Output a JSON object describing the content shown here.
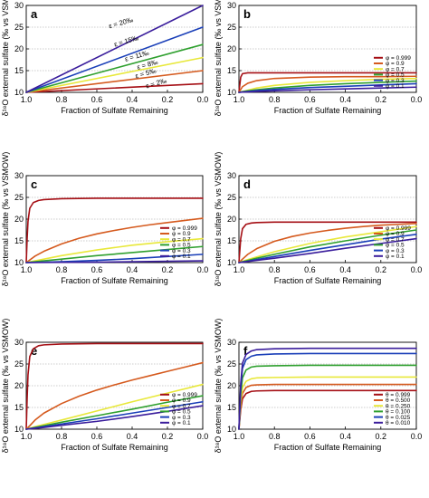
{
  "colors": [
    "#a50f15",
    "#d55a1e",
    "#e8e83a",
    "#2fa02f",
    "#1a3fb8",
    "#3a1d9c"
  ],
  "chart_data": [
    {
      "type": "line",
      "panel": "a",
      "xlabel": "Fraction of Sulfate Remaining",
      "ylabel": "δ¹⁸O external sulfate (‰ vs VSMOW)",
      "xlim": [
        1.0,
        0.0
      ],
      "ylim": [
        10,
        30
      ],
      "xticks": [
        "1.0",
        "0.8",
        "0.6",
        "0.4",
        "0.2",
        "0.0"
      ],
      "yticks": [
        "10",
        "15",
        "20",
        "25",
        "30"
      ],
      "series": [
        {
          "name": "ε = 2‰",
          "x": [
            1.0,
            0.0
          ],
          "y": [
            10,
            12
          ]
        },
        {
          "name": "ε = 5‰",
          "x": [
            1.0,
            0.0
          ],
          "y": [
            10,
            15
          ]
        },
        {
          "name": "ε = 8‰",
          "x": [
            1.0,
            0.0
          ],
          "y": [
            10,
            18
          ]
        },
        {
          "name": "ε = 11‰",
          "x": [
            1.0,
            0.0
          ],
          "y": [
            10,
            21
          ]
        },
        {
          "name": "ε = 15‰",
          "x": [
            1.0,
            0.0
          ],
          "y": [
            10,
            25
          ]
        },
        {
          "name": "ε = 20‰",
          "x": [
            1.0,
            0.0
          ],
          "y": [
            10,
            30
          ]
        }
      ],
      "annotations": [
        {
          "text": "ε = 20‰",
          "x": 0.46,
          "y": 25.5
        },
        {
          "text": "ε = 15‰",
          "x": 0.43,
          "y": 21.3
        },
        {
          "text": "ε = 11‰",
          "x": 0.37,
          "y": 17.9
        },
        {
          "text": "ε = 8‰",
          "x": 0.31,
          "y": 15.9
        },
        {
          "text": "ε = 5‰",
          "x": 0.32,
          "y": 13.9
        },
        {
          "text": "ε = 2‰",
          "x": 0.26,
          "y": 11.6
        }
      ]
    },
    {
      "type": "line",
      "panel": "b",
      "xlabel": "Fraction of Sulfate Remaining",
      "ylabel": "δ¹⁸O external sulfate (‰ vs VSMOW)",
      "xlim": [
        1.0,
        0.0
      ],
      "ylim": [
        0,
        30
      ],
      "xticks": [
        "1.0",
        "0.8",
        "0.6",
        "0.4",
        "0.2",
        "0.0"
      ],
      "yticks": [
        "10",
        "15",
        "20",
        "25",
        "30"
      ],
      "legend_title": "φ",
      "legend_position": "bottom-right",
      "series": [
        {
          "name": "φ = 0.999",
          "x": [
            1.0,
            0.99,
            0.98,
            0.95,
            0.9,
            0.6,
            0.3,
            0.0
          ],
          "y": [
            10,
            13.5,
            14.3,
            14.5,
            14.5,
            14.5,
            14.5,
            14.5
          ]
        },
        {
          "name": "φ = 0.9",
          "x": [
            1.0,
            0.98,
            0.95,
            0.9,
            0.8,
            0.6,
            0.4,
            0.2,
            0.0
          ],
          "y": [
            10,
            11.3,
            12.1,
            12.7,
            13.2,
            13.5,
            13.6,
            13.6,
            13.7
          ]
        },
        {
          "name": "φ = 0.7",
          "x": [
            1.0,
            0.98,
            0.95,
            0.9,
            0.8,
            0.6,
            0.4,
            0.2,
            0.0
          ],
          "y": [
            10,
            10.2,
            10.5,
            11.0,
            11.6,
            12.3,
            12.7,
            13.0,
            13.2
          ]
        },
        {
          "name": "φ = 0.5",
          "x": [
            1.0,
            0.98,
            0.95,
            0.9,
            0.8,
            0.6,
            0.4,
            0.2,
            0.0
          ],
          "y": [
            10,
            10.15,
            10.35,
            10.6,
            11.0,
            11.6,
            12.0,
            12.3,
            12.6
          ]
        },
        {
          "name": "φ = 0.3",
          "x": [
            1.0,
            0.98,
            0.95,
            0.9,
            0.8,
            0.6,
            0.4,
            0.2,
            0.0
          ],
          "y": [
            10,
            10.1,
            10.2,
            10.4,
            10.7,
            11.1,
            11.4,
            11.7,
            12.0
          ]
        },
        {
          "name": "φ = 0.1",
          "x": [
            1.0,
            0.98,
            0.95,
            0.9,
            0.8,
            0.6,
            0.4,
            0.2,
            0.0
          ],
          "y": [
            10,
            10.05,
            10.1,
            10.2,
            10.35,
            10.6,
            10.8,
            11.0,
            11.2
          ]
        }
      ]
    },
    {
      "type": "line",
      "panel": "c",
      "xlabel": "Fraction of Sulfate Remaining",
      "ylabel": "δ¹⁸O external sulfate (‰ vs VSMOW)",
      "xlim": [
        1.0,
        0.0
      ],
      "ylim": [
        10,
        30
      ],
      "xticks": [
        "1.0",
        "0.8",
        "0.6",
        "0.4",
        "0.2",
        "0.0"
      ],
      "yticks": [
        "10",
        "15",
        "20",
        "25",
        "30"
      ],
      "legend_title": "φ",
      "legend_position": "bottom-right",
      "series": [
        {
          "name": "φ = 0.999",
          "x": [
            1.0,
            0.995,
            0.99,
            0.98,
            0.96,
            0.93,
            0.9,
            0.8,
            0.6,
            0.3,
            0.0
          ],
          "y": [
            10,
            15.5,
            19.5,
            22.5,
            23.8,
            24.3,
            24.5,
            24.7,
            24.8,
            24.8,
            24.8
          ]
        },
        {
          "name": "φ = 0.9",
          "x": [
            1.0,
            0.98,
            0.95,
            0.9,
            0.8,
            0.7,
            0.6,
            0.5,
            0.4,
            0.3,
            0.2,
            0.1,
            0.0
          ],
          "y": [
            10,
            10.6,
            11.5,
            12.6,
            14.3,
            15.6,
            16.6,
            17.4,
            18.1,
            18.7,
            19.2,
            19.7,
            20.2
          ]
        },
        {
          "name": "φ = 0.7",
          "x": [
            1.0,
            0.95,
            0.9,
            0.8,
            0.6,
            0.4,
            0.2,
            0.0
          ],
          "y": [
            10,
            10.4,
            10.8,
            11.6,
            12.9,
            14.0,
            14.8,
            15.5
          ]
        },
        {
          "name": "φ = 0.5",
          "x": [
            1.0,
            0.95,
            0.9,
            0.8,
            0.6,
            0.4,
            0.2,
            0.0
          ],
          "y": [
            10,
            10.2,
            10.4,
            10.8,
            11.6,
            12.3,
            13.0,
            13.7
          ]
        },
        {
          "name": "φ = 0.3",
          "x": [
            1.0,
            0.9,
            0.8,
            0.6,
            0.4,
            0.2,
            0.0
          ],
          "y": [
            10,
            10.1,
            10.2,
            10.5,
            10.9,
            11.4,
            11.9
          ]
        },
        {
          "name": "φ = 0.1",
          "x": [
            1.0,
            0.8,
            0.6,
            0.4,
            0.2,
            0.0
          ],
          "y": [
            10,
            10.05,
            10.1,
            10.2,
            10.3,
            10.4
          ]
        }
      ]
    },
    {
      "type": "line",
      "panel": "d",
      "xlabel": "Fraction of Sulfate Remaining",
      "ylabel": "δ¹⁸O external sulfate (‰ vs VSMOW)",
      "xlim": [
        1.0,
        0.0
      ],
      "ylim": [
        10,
        30
      ],
      "xticks": [
        "1.0",
        "0.8",
        "0.6",
        "0.4",
        "0.2",
        "0.0"
      ],
      "yticks": [
        "10",
        "15",
        "20",
        "25",
        "30"
      ],
      "legend_title": "φ",
      "legend_position": "bottom-right",
      "series": [
        {
          "name": "φ = 0.999",
          "x": [
            1.0,
            0.99,
            0.98,
            0.96,
            0.93,
            0.9,
            0.8,
            0.6,
            0.3,
            0.0
          ],
          "y": [
            10,
            15.5,
            17.8,
            18.8,
            19.1,
            19.2,
            19.3,
            19.3,
            19.3,
            19.3
          ]
        },
        {
          "name": "φ = 0.9",
          "x": [
            1.0,
            0.98,
            0.95,
            0.9,
            0.8,
            0.7,
            0.6,
            0.5,
            0.4,
            0.3,
            0.2,
            0.1,
            0.0
          ],
          "y": [
            10,
            10.8,
            11.9,
            13.2,
            14.9,
            16.0,
            16.8,
            17.4,
            17.9,
            18.3,
            18.6,
            18.8,
            19.0
          ]
        },
        {
          "name": "φ = 0.7",
          "x": [
            1.0,
            0.95,
            0.9,
            0.8,
            0.6,
            0.4,
            0.2,
            0.0
          ],
          "y": [
            10,
            10.7,
            11.3,
            12.5,
            14.4,
            15.9,
            17.1,
            18.3
          ]
        },
        {
          "name": "φ = 0.5",
          "x": [
            1.0,
            0.95,
            0.9,
            0.8,
            0.6,
            0.4,
            0.2,
            0.0
          ],
          "y": [
            10,
            10.5,
            11.0,
            11.9,
            13.6,
            15.0,
            16.3,
            17.5
          ]
        },
        {
          "name": "φ = 0.3",
          "x": [
            1.0,
            0.95,
            0.9,
            0.8,
            0.6,
            0.4,
            0.2,
            0.0
          ],
          "y": [
            10,
            10.3,
            10.7,
            11.4,
            12.8,
            14.1,
            15.4,
            16.5
          ]
        },
        {
          "name": "φ = 0.1",
          "x": [
            1.0,
            0.95,
            0.9,
            0.8,
            0.6,
            0.4,
            0.2,
            0.0
          ],
          "y": [
            10,
            10.25,
            10.5,
            11.0,
            12.1,
            13.3,
            14.4,
            15.5
          ]
        }
      ]
    },
    {
      "type": "line",
      "panel": "e",
      "xlabel": "Fraction of Sulfate Remaining",
      "ylabel": "δ¹⁸O external sulfate (‰ vs VSMOW)",
      "xlim": [
        1.0,
        0.0
      ],
      "ylim": [
        10,
        30
      ],
      "xticks": [
        "1.0",
        "0.8",
        "0.6",
        "0.4",
        "0.2",
        "0.0"
      ],
      "yticks": [
        "10",
        "15",
        "20",
        "25",
        "30"
      ],
      "legend_title": "φ",
      "legend_position": "bottom-right",
      "series": [
        {
          "name": "φ = 0.999",
          "x": [
            1.0,
            0.995,
            0.99,
            0.98,
            0.96,
            0.93,
            0.9,
            0.8,
            0.6,
            0.3,
            0.0
          ],
          "y": [
            10,
            17.0,
            22.5,
            26.7,
            28.5,
            29.2,
            29.4,
            29.6,
            29.7,
            29.7,
            29.7
          ]
        },
        {
          "name": "φ = 0.9",
          "x": [
            1.0,
            0.98,
            0.95,
            0.9,
            0.8,
            0.7,
            0.6,
            0.5,
            0.4,
            0.3,
            0.2,
            0.1,
            0.0
          ],
          "y": [
            10,
            10.8,
            12.1,
            13.7,
            15.9,
            17.6,
            19.0,
            20.2,
            21.3,
            22.3,
            23.3,
            24.3,
            25.3
          ]
        },
        {
          "name": "φ = 0.7",
          "x": [
            1.0,
            0.95,
            0.9,
            0.8,
            0.6,
            0.4,
            0.2,
            0.0
          ],
          "y": [
            10,
            10.6,
            11.1,
            12.1,
            14.2,
            16.3,
            18.3,
            20.3
          ]
        },
        {
          "name": "φ = 0.5",
          "x": [
            1.0,
            0.95,
            0.9,
            0.8,
            0.6,
            0.4,
            0.2,
            0.0
          ],
          "y": [
            10,
            10.4,
            10.8,
            11.6,
            13.1,
            14.6,
            16.2,
            17.7
          ]
        },
        {
          "name": "φ = 0.3",
          "x": [
            1.0,
            0.95,
            0.9,
            0.8,
            0.6,
            0.4,
            0.2,
            0.0
          ],
          "y": [
            10,
            10.3,
            10.6,
            11.2,
            12.4,
            13.7,
            15.0,
            16.3
          ]
        },
        {
          "name": "φ = 0.1",
          "x": [
            1.0,
            0.95,
            0.9,
            0.8,
            0.6,
            0.4,
            0.2,
            0.0
          ],
          "y": [
            10,
            10.2,
            10.4,
            10.9,
            11.8,
            12.9,
            14.1,
            15.4
          ]
        }
      ]
    },
    {
      "type": "line",
      "panel": "f",
      "xlabel": "Fraction of Sulfate Remaining",
      "ylabel": "δ¹⁸O external sulfate (‰ vs VSMOW)",
      "xlim": [
        1.0,
        0.0
      ],
      "ylim": [
        10,
        30
      ],
      "xticks": [
        "1.0",
        "0.8",
        "0.6",
        "0.4",
        "0.2",
        "0.0"
      ],
      "yticks": [
        "10",
        "15",
        "20",
        "25",
        "30"
      ],
      "legend_title": "θ",
      "legend_position": "bottom-right",
      "series": [
        {
          "name": "θ = 0.999",
          "x": [
            1.0,
            0.99,
            0.98,
            0.96,
            0.93,
            0.9,
            0.8,
            0.6,
            0.3,
            0.0
          ],
          "y": [
            10,
            14.5,
            17.0,
            18.2,
            18.7,
            18.8,
            18.9,
            18.9,
            18.9,
            18.9
          ]
        },
        {
          "name": "θ = 0.500",
          "x": [
            1.0,
            0.99,
            0.98,
            0.96,
            0.93,
            0.9,
            0.8,
            0.6,
            0.3,
            0.0
          ],
          "y": [
            10,
            15.5,
            18.2,
            19.6,
            20.1,
            20.2,
            20.3,
            20.3,
            20.3,
            20.3
          ]
        },
        {
          "name": "θ = 0.250",
          "x": [
            1.0,
            0.99,
            0.98,
            0.96,
            0.93,
            0.9,
            0.8,
            0.6,
            0.3,
            0.0
          ],
          "y": [
            10,
            16.5,
            19.6,
            21.0,
            21.6,
            21.8,
            21.9,
            22.0,
            22.0,
            22.0
          ]
        },
        {
          "name": "θ = 0.100",
          "x": [
            1.0,
            0.99,
            0.98,
            0.96,
            0.93,
            0.9,
            0.8,
            0.6,
            0.3,
            0.0
          ],
          "y": [
            10,
            18.0,
            21.8,
            23.6,
            24.3,
            24.5,
            24.6,
            24.7,
            24.7,
            24.7
          ]
        },
        {
          "name": "θ = 0.025",
          "x": [
            1.0,
            0.99,
            0.98,
            0.96,
            0.93,
            0.9,
            0.8,
            0.6,
            0.3,
            0.0
          ],
          "y": [
            10,
            19.5,
            24.0,
            26.0,
            26.8,
            27.1,
            27.3,
            27.4,
            27.4,
            27.4
          ]
        },
        {
          "name": "θ = 0.010",
          "x": [
            1.0,
            0.99,
            0.98,
            0.96,
            0.93,
            0.9,
            0.8,
            0.6,
            0.3,
            0.0
          ],
          "y": [
            10,
            20.5,
            25.2,
            27.2,
            28.0,
            28.3,
            28.5,
            28.6,
            28.6,
            28.6
          ]
        }
      ]
    }
  ]
}
